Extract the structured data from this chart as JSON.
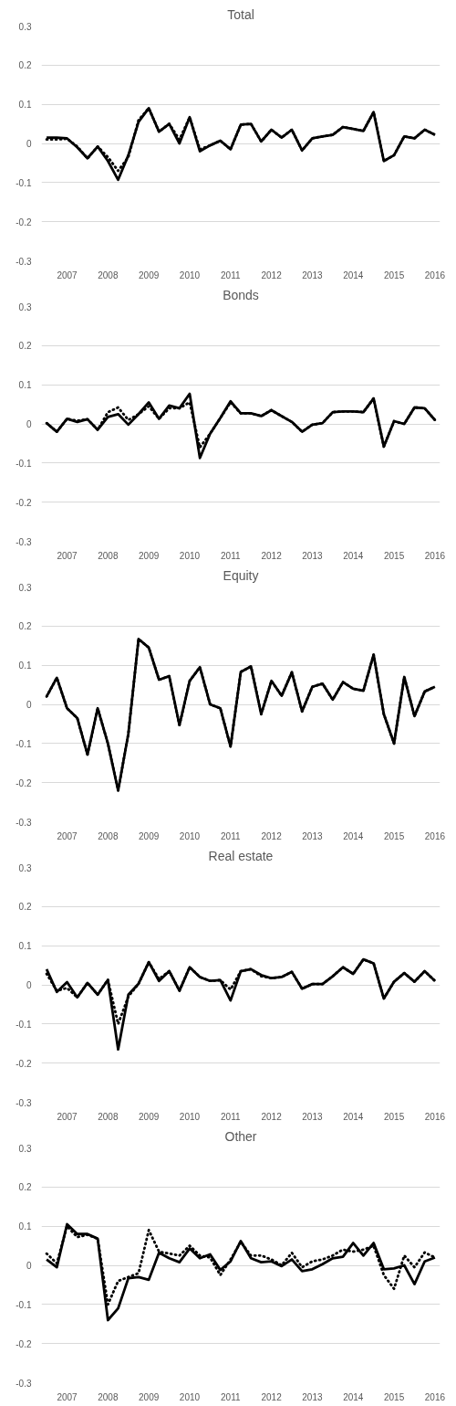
{
  "chart_data": [
    {
      "type": "line",
      "title": "Total",
      "x": [
        2006.5,
        2006.75,
        2007,
        2007.25,
        2007.5,
        2007.75,
        2008,
        2008.25,
        2008.5,
        2008.75,
        2009,
        2009.25,
        2009.5,
        2009.75,
        2010,
        2010.25,
        2010.5,
        2010.75,
        2011,
        2011.25,
        2011.5,
        2011.75,
        2012,
        2012.25,
        2012.5,
        2012.75,
        2013,
        2013.25,
        2013.5,
        2013.75,
        2014,
        2014.25,
        2014.5,
        2014.75,
        2015,
        2015.25,
        2015.5,
        2015.75,
        2016
      ],
      "xlim": [
        2006.375,
        2016.125
      ],
      "xticks": [
        2007,
        2008,
        2009,
        2010,
        2011,
        2012,
        2013,
        2014,
        2015,
        2016
      ],
      "ylim": [
        -0.3,
        0.3
      ],
      "yticks": [
        -0.3,
        -0.2,
        -0.1,
        0,
        0.1,
        0.2,
        0.3
      ],
      "grid": "y",
      "series": [
        {
          "color": "#000000",
          "line_style": "dotted",
          "values": [
            0.01,
            0.01,
            0.012,
            -0.008,
            -0.038,
            -0.008,
            -0.035,
            -0.07,
            -0.035,
            0.06,
            0.09,
            0.03,
            0.05,
            0.01,
            0.067,
            -0.015,
            -0.005,
            0.007,
            -0.015,
            0.048,
            0.05,
            0.005,
            0.035,
            0.015,
            0.035,
            -0.018,
            0.013,
            0.018,
            0.022,
            0.042,
            0.037,
            0.032,
            0.08,
            -0.045,
            -0.03,
            0.018,
            0.013,
            0.035,
            0.022
          ]
        },
        {
          "color": "#000000",
          "line_style": "solid",
          "values": [
            0.015,
            0.015,
            0.013,
            -0.01,
            -0.038,
            -0.008,
            -0.045,
            -0.093,
            -0.03,
            0.055,
            0.09,
            0.03,
            0.05,
            0.0,
            0.067,
            -0.02,
            -0.005,
            0.007,
            -0.015,
            0.048,
            0.05,
            0.005,
            0.035,
            0.015,
            0.035,
            -0.018,
            0.013,
            0.018,
            0.022,
            0.042,
            0.037,
            0.032,
            0.08,
            -0.045,
            -0.03,
            0.018,
            0.013,
            0.035,
            0.022
          ]
        }
      ]
    },
    {
      "type": "line",
      "title": "Bonds",
      "x": [
        2006.5,
        2006.75,
        2007,
        2007.25,
        2007.5,
        2007.75,
        2008,
        2008.25,
        2008.5,
        2008.75,
        2009,
        2009.25,
        2009.5,
        2009.75,
        2010,
        2010.25,
        2010.5,
        2010.75,
        2011,
        2011.25,
        2011.5,
        2011.75,
        2012,
        2012.25,
        2012.5,
        2012.75,
        2013,
        2013.25,
        2013.5,
        2013.75,
        2014,
        2014.25,
        2014.5,
        2014.75,
        2015,
        2015.25,
        2015.5,
        2015.75,
        2016
      ],
      "xlim": [
        2006.375,
        2016.125
      ],
      "xticks": [
        2007,
        2008,
        2009,
        2010,
        2011,
        2012,
        2013,
        2014,
        2015,
        2016
      ],
      "ylim": [
        -0.3,
        0.3
      ],
      "yticks": [
        -0.3,
        -0.2,
        -0.1,
        0,
        0.1,
        0.2,
        0.3
      ],
      "grid": "y",
      "series": [
        {
          "color": "#000000",
          "line_style": "dotted",
          "values": [
            0.002,
            -0.02,
            0.013,
            0.008,
            0.012,
            -0.015,
            0.03,
            0.042,
            0.01,
            0.025,
            0.045,
            0.013,
            0.04,
            0.04,
            0.055,
            -0.06,
            -0.025,
            0.015,
            0.055,
            0.027,
            0.027,
            0.02,
            0.035,
            0.02,
            0.005,
            -0.02,
            -0.002,
            0.002,
            0.03,
            0.032,
            0.032,
            0.03,
            0.065,
            -0.058,
            0.007,
            0.0,
            0.042,
            0.04,
            0.01
          ]
        },
        {
          "color": "#000000",
          "line_style": "solid",
          "values": [
            0.002,
            -0.02,
            0.013,
            0.005,
            0.012,
            -0.015,
            0.018,
            0.025,
            -0.002,
            0.025,
            0.055,
            0.013,
            0.047,
            0.04,
            0.077,
            -0.087,
            -0.025,
            0.015,
            0.058,
            0.027,
            0.027,
            0.02,
            0.035,
            0.02,
            0.005,
            -0.02,
            -0.002,
            0.002,
            0.03,
            0.032,
            0.032,
            0.03,
            0.065,
            -0.058,
            0.007,
            0.0,
            0.042,
            0.04,
            0.01
          ]
        }
      ]
    },
    {
      "type": "line",
      "title": "Equity",
      "x": [
        2006.5,
        2006.75,
        2007,
        2007.25,
        2007.5,
        2007.75,
        2008,
        2008.25,
        2008.5,
        2008.75,
        2009,
        2009.25,
        2009.5,
        2009.75,
        2010,
        2010.25,
        2010.5,
        2010.75,
        2011,
        2011.25,
        2011.5,
        2011.75,
        2012,
        2012.25,
        2012.5,
        2012.75,
        2013,
        2013.25,
        2013.5,
        2013.75,
        2014,
        2014.25,
        2014.5,
        2014.75,
        2015,
        2015.25,
        2015.5,
        2015.75,
        2016
      ],
      "xlim": [
        2006.375,
        2016.125
      ],
      "xticks": [
        2007,
        2008,
        2009,
        2010,
        2011,
        2012,
        2013,
        2014,
        2015,
        2016
      ],
      "ylim": [
        -0.3,
        0.3
      ],
      "yticks": [
        -0.3,
        -0.2,
        -0.1,
        0,
        0.1,
        0.2,
        0.3
      ],
      "grid": "y",
      "series": [
        {
          "color": "#000000",
          "line_style": "dotted",
          "values": [
            0.02,
            0.068,
            -0.01,
            -0.035,
            -0.128,
            -0.01,
            -0.1,
            -0.22,
            -0.075,
            0.167,
            0.145,
            0.063,
            0.072,
            -0.053,
            0.06,
            0.095,
            0.0,
            -0.01,
            -0.108,
            0.083,
            0.097,
            -0.025,
            0.06,
            0.022,
            0.082,
            -0.018,
            0.045,
            0.053,
            0.012,
            0.057,
            0.04,
            0.035,
            0.127,
            -0.025,
            -0.1,
            0.07,
            -0.03,
            0.033,
            0.045
          ]
        },
        {
          "color": "#000000",
          "line_style": "solid",
          "values": [
            0.02,
            0.068,
            -0.01,
            -0.035,
            -0.128,
            -0.01,
            -0.1,
            -0.22,
            -0.075,
            0.167,
            0.145,
            0.063,
            0.072,
            -0.053,
            0.06,
            0.095,
            0.0,
            -0.01,
            -0.108,
            0.083,
            0.097,
            -0.025,
            0.06,
            0.022,
            0.082,
            -0.018,
            0.045,
            0.053,
            0.012,
            0.057,
            0.04,
            0.035,
            0.127,
            -0.025,
            -0.1,
            0.07,
            -0.03,
            0.033,
            0.045
          ]
        }
      ]
    },
    {
      "type": "line",
      "title": "Real estate",
      "x": [
        2006.5,
        2006.75,
        2007,
        2007.25,
        2007.5,
        2007.75,
        2008,
        2008.25,
        2008.5,
        2008.75,
        2009,
        2009.25,
        2009.5,
        2009.75,
        2010,
        2010.25,
        2010.5,
        2010.75,
        2011,
        2011.25,
        2011.5,
        2011.75,
        2012,
        2012.25,
        2012.5,
        2012.75,
        2013,
        2013.25,
        2013.5,
        2013.75,
        2014,
        2014.25,
        2014.5,
        2014.75,
        2015,
        2015.25,
        2015.5,
        2015.75,
        2016
      ],
      "xlim": [
        2006.375,
        2016.125
      ],
      "xticks": [
        2007,
        2008,
        2009,
        2010,
        2011,
        2012,
        2013,
        2014,
        2015,
        2016
      ],
      "ylim": [
        -0.3,
        0.3
      ],
      "yticks": [
        -0.3,
        -0.2,
        -0.1,
        0,
        0.1,
        0.2,
        0.3
      ],
      "grid": "y",
      "series": [
        {
          "color": "#000000",
          "line_style": "dotted",
          "values": [
            0.028,
            -0.015,
            -0.008,
            -0.032,
            0.005,
            -0.025,
            0.013,
            -0.1,
            -0.03,
            0.003,
            0.058,
            0.015,
            0.035,
            -0.015,
            0.045,
            0.02,
            0.01,
            0.012,
            -0.012,
            0.035,
            0.04,
            0.022,
            0.017,
            0.02,
            0.033,
            -0.01,
            0.002,
            0.002,
            0.022,
            0.045,
            0.028,
            0.065,
            0.055,
            -0.035,
            0.008,
            0.03,
            0.008,
            0.035,
            0.01
          ]
        },
        {
          "color": "#000000",
          "line_style": "solid",
          "values": [
            0.04,
            -0.018,
            0.007,
            -0.032,
            0.005,
            -0.025,
            0.013,
            -0.165,
            -0.025,
            0.003,
            0.058,
            0.01,
            0.035,
            -0.015,
            0.045,
            0.02,
            0.01,
            0.012,
            -0.04,
            0.035,
            0.04,
            0.025,
            0.017,
            0.02,
            0.033,
            -0.01,
            0.002,
            0.002,
            0.022,
            0.045,
            0.028,
            0.065,
            0.055,
            -0.035,
            0.008,
            0.03,
            0.008,
            0.035,
            0.01
          ]
        }
      ]
    },
    {
      "type": "line",
      "title": "Other",
      "x": [
        2006.5,
        2006.75,
        2007,
        2007.25,
        2007.5,
        2007.75,
        2008,
        2008.25,
        2008.5,
        2008.75,
        2009,
        2009.25,
        2009.5,
        2009.75,
        2010,
        2010.25,
        2010.5,
        2010.75,
        2011,
        2011.25,
        2011.5,
        2011.75,
        2012,
        2012.25,
        2012.5,
        2012.75,
        2013,
        2013.25,
        2013.5,
        2013.75,
        2014,
        2014.25,
        2014.5,
        2014.75,
        2015,
        2015.25,
        2015.5,
        2015.75,
        2016
      ],
      "xlim": [
        2006.375,
        2016.125
      ],
      "xticks": [
        2007,
        2008,
        2009,
        2010,
        2011,
        2012,
        2013,
        2014,
        2015,
        2016
      ],
      "ylim": [
        -0.3,
        0.3
      ],
      "yticks": [
        -0.3,
        -0.2,
        -0.1,
        0,
        0.1,
        0.2,
        0.3
      ],
      "grid": "y",
      "series": [
        {
          "color": "#000000",
          "line_style": "dotted",
          "values": [
            0.03,
            0.005,
            0.1,
            0.072,
            0.078,
            0.068,
            -0.1,
            -0.04,
            -0.03,
            -0.02,
            0.09,
            0.035,
            0.03,
            0.025,
            0.05,
            0.025,
            0.02,
            -0.025,
            0.015,
            0.06,
            0.025,
            0.025,
            0.015,
            0.0,
            0.032,
            -0.005,
            0.01,
            0.015,
            0.025,
            0.04,
            0.035,
            0.04,
            0.05,
            -0.025,
            -0.06,
            0.025,
            -0.005,
            0.033,
            0.02
          ]
        },
        {
          "color": "#000000",
          "line_style": "solid",
          "values": [
            0.015,
            -0.005,
            0.105,
            0.08,
            0.08,
            0.068,
            -0.14,
            -0.11,
            -0.033,
            -0.03,
            -0.037,
            0.032,
            0.018,
            0.008,
            0.043,
            0.018,
            0.028,
            -0.012,
            0.01,
            0.062,
            0.018,
            0.008,
            0.01,
            -0.002,
            0.015,
            -0.015,
            -0.01,
            0.003,
            0.018,
            0.022,
            0.057,
            0.025,
            0.057,
            -0.01,
            -0.008,
            0.0,
            -0.048,
            0.01,
            0.02
          ]
        }
      ]
    }
  ]
}
